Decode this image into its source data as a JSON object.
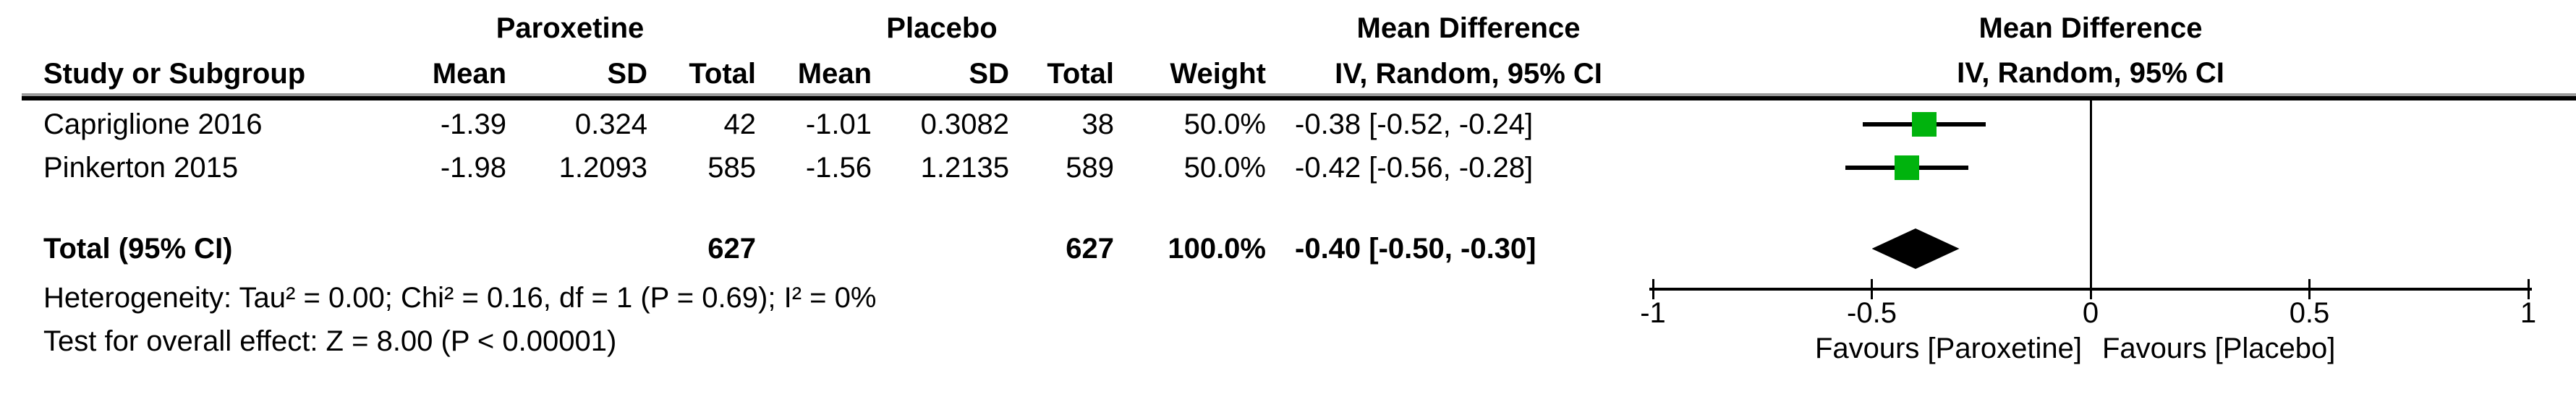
{
  "header": {
    "group1": "Paroxetine",
    "group2": "Placebo",
    "effect_title": "Mean Difference",
    "effect_sub": "IV, Random, 95% CI",
    "plot_title": "Mean Difference",
    "plot_sub": "IV, Random, 95% CI"
  },
  "columns": {
    "study": "Study or Subgroup",
    "mean": "Mean",
    "sd": "SD",
    "total": "Total",
    "weight": "Weight",
    "ci": "IV, Random, 95% CI"
  },
  "table": {
    "rows": [
      {
        "study": "Capriglione 2016",
        "mean1": "-1.39",
        "sd1": "0.324",
        "total1": "42",
        "mean2": "-1.01",
        "sd2": "0.3082",
        "total2": "38",
        "weight": "50.0%",
        "ci": "-0.38 [-0.52, -0.24]",
        "md": -0.38,
        "lo": -0.52,
        "hi": -0.24
      },
      {
        "study": "Pinkerton 2015",
        "mean1": "-1.98",
        "sd1": "1.2093",
        "total1": "585",
        "mean2": "-1.56",
        "sd2": "1.2135",
        "total2": "589",
        "weight": "50.0%",
        "ci": "-0.42 [-0.56, -0.28]",
        "md": -0.42,
        "lo": -0.56,
        "hi": -0.28
      }
    ],
    "total": {
      "label": "Total (95% CI)",
      "total1": "627",
      "total2": "627",
      "weight": "100.0%",
      "ci": "-0.40 [-0.50, -0.30]",
      "md": -0.4,
      "lo": -0.5,
      "hi": -0.3
    },
    "heterogeneity": "Heterogeneity: Tau² = 0.00; Chi² = 0.16, df = 1 (P = 0.69); I² = 0%",
    "overall_effect": "Test for overall effect: Z = 8.00 (P < 0.00001)"
  },
  "axis": {
    "min": -1,
    "max": 1,
    "tick_values": [
      -1,
      -0.5,
      0,
      0.5,
      1
    ],
    "tick_labels": [
      "-1",
      "-0.5",
      "0",
      "0.5",
      "1"
    ],
    "favours_left": "Favours [Paroxetine]",
    "favours_right": "Favours [Placebo]"
  },
  "colors": {
    "marker_green": "#00B30D",
    "line_black": "#000000"
  },
  "chart_data": {
    "type": "scatter",
    "subtype": "forest-plot",
    "title": "Mean Difference",
    "effect_measure": "IV, Random, 95% CI",
    "comparison_groups": [
      "Paroxetine",
      "Placebo"
    ],
    "studies": [
      {
        "name": "Capriglione 2016",
        "group1_mean": -1.39,
        "group1_sd": 0.324,
        "group1_total": 42,
        "group2_mean": -1.01,
        "group2_sd": 0.3082,
        "group2_total": 38,
        "weight_pct": 50.0,
        "md": -0.38,
        "ci_low": -0.52,
        "ci_high": -0.24
      },
      {
        "name": "Pinkerton 2015",
        "group1_mean": -1.98,
        "group1_sd": 1.2093,
        "group1_total": 585,
        "group2_mean": -1.56,
        "group2_sd": 1.2135,
        "group2_total": 589,
        "weight_pct": 50.0,
        "md": -0.42,
        "ci_low": -0.56,
        "ci_high": -0.28
      }
    ],
    "total": {
      "group1_total": 627,
      "group2_total": 627,
      "weight_pct": 100.0,
      "md": -0.4,
      "ci_low": -0.5,
      "ci_high": -0.3
    },
    "heterogeneity": {
      "tau2": 0.0,
      "chi2": 0.16,
      "df": 1,
      "p": 0.69,
      "i2_pct": 0
    },
    "overall_effect": {
      "z": 8.0,
      "p": "< 0.00001"
    },
    "xlim": [
      -1,
      1
    ],
    "x_ticks": [
      -1,
      -0.5,
      0,
      0.5,
      1
    ],
    "xlabel_left": "Favours [Paroxetine]",
    "xlabel_right": "Favours [Placebo]"
  }
}
